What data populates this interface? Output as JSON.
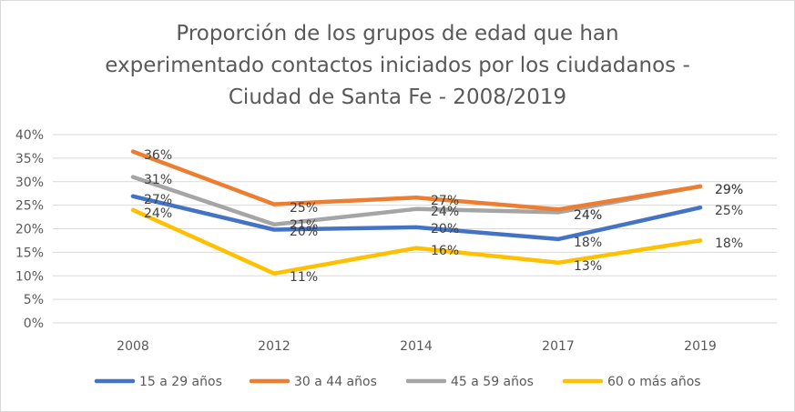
{
  "chart_data": {
    "type": "line",
    "title_lines": [
      "Proporción de los grupos de edad que han",
      "experimentado contactos iniciados por los ciudadanos -",
      "Ciudad de Santa Fe - 2008/2019"
    ],
    "categories": [
      "2008",
      "2012",
      "2014",
      "2017",
      "2019"
    ],
    "y_ticks": [
      "0%",
      "5%",
      "10%",
      "15%",
      "20%",
      "25%",
      "30%",
      "35%",
      "40%"
    ],
    "ylim": [
      0,
      40
    ],
    "grid": true,
    "legend_position": "bottom",
    "series": [
      {
        "name": "15 a 29 años",
        "color": "#4472C4",
        "values": [
          26.9,
          19.8,
          20.3,
          17.8,
          24.5
        ],
        "labels": [
          "27%",
          "20%",
          "20%",
          "18%",
          "25%"
        ]
      },
      {
        "name": "30 a 44 años",
        "color": "#ED7D31",
        "values": [
          36.4,
          25.2,
          26.6,
          24.1,
          29.0
        ],
        "labels": [
          "36%",
          "25%",
          "27%",
          "24%",
          "29%"
        ]
      },
      {
        "name": "45 a 59 años",
        "color": "#A5A5A5",
        "values": [
          31.0,
          20.9,
          24.2,
          23.5,
          29.0
        ],
        "labels": [
          "31%",
          "21%",
          "24%",
          "24%",
          "29%"
        ]
      },
      {
        "name": "60 o más años",
        "color": "#FFC000",
        "values": [
          24.0,
          10.5,
          15.9,
          12.8,
          17.5
        ],
        "labels": [
          "24%",
          "11%",
          "16%",
          "13%",
          "18%"
        ]
      }
    ]
  }
}
